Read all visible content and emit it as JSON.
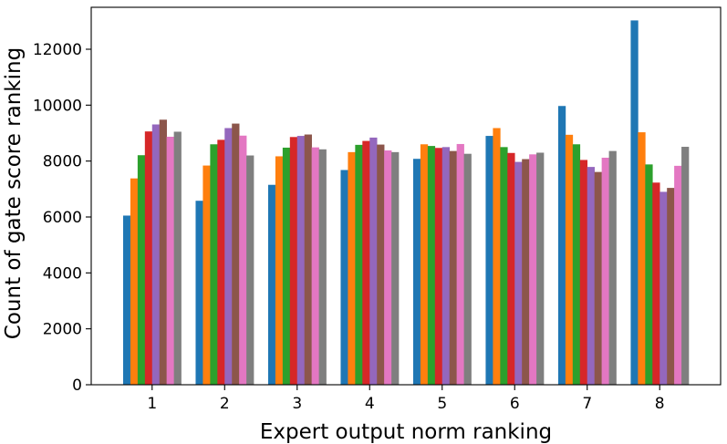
{
  "chart_data": {
    "type": "bar",
    "title": "",
    "xlabel": "Expert output norm ranking",
    "ylabel": "Count of gate score ranking",
    "categories": [
      "1",
      "2",
      "3",
      "4",
      "5",
      "6",
      "7",
      "8"
    ],
    "ylim": [
      0,
      13500
    ],
    "yticks": [
      0,
      2000,
      4000,
      6000,
      8000,
      10000,
      12000
    ],
    "ytick_labels": [
      "0",
      "2000",
      "4000",
      "6000",
      "8000",
      "10000",
      "12000"
    ],
    "grid": false,
    "legend": "none",
    "series": [
      {
        "color": "#1f77b4",
        "values": [
          6050,
          6580,
          7150,
          7680,
          8080,
          8900,
          9970,
          13030
        ]
      },
      {
        "color": "#ff7f0e",
        "values": [
          7380,
          7840,
          8170,
          8320,
          8600,
          9180,
          8940,
          9030
        ]
      },
      {
        "color": "#2ca02c",
        "values": [
          8210,
          8600,
          8480,
          8580,
          8540,
          8500,
          8600,
          7880
        ]
      },
      {
        "color": "#d62728",
        "values": [
          9060,
          8760,
          8860,
          8720,
          8470,
          8290,
          8040,
          7230
        ]
      },
      {
        "color": "#9467bd",
        "values": [
          9310,
          9180,
          8900,
          8840,
          8500,
          7970,
          7790,
          6900
        ]
      },
      {
        "color": "#8c564b",
        "values": [
          9480,
          9340,
          8950,
          8590,
          8360,
          8070,
          7610,
          7040
        ]
      },
      {
        "color": "#e377c2",
        "values": [
          8870,
          8910,
          8490,
          8380,
          8610,
          8240,
          8120,
          7830
        ]
      },
      {
        "color": "#7f7f7f",
        "values": [
          9050,
          8200,
          8420,
          8320,
          8260,
          8300,
          8360,
          8510
        ]
      }
    ]
  }
}
